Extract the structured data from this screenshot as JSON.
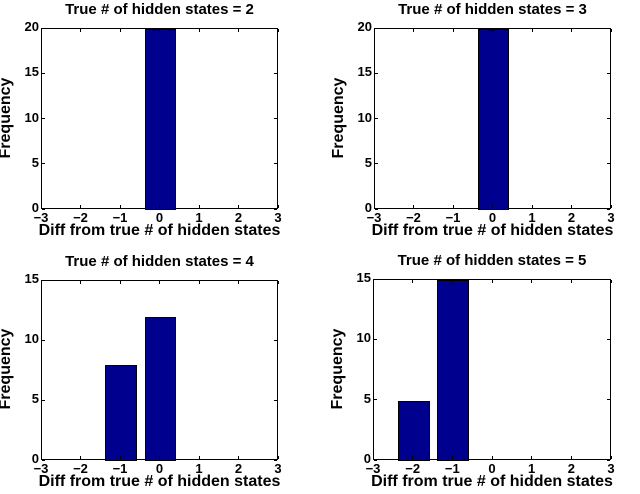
{
  "chart_data": [
    {
      "type": "bar",
      "title": "True # of hidden states = 2",
      "xlabel": "Diff from true # of hidden states",
      "ylabel": "Frequency",
      "x": [
        0
      ],
      "values": [
        20
      ],
      "xlim": [
        -3,
        3
      ],
      "ylim": [
        0,
        20
      ],
      "xticks": [
        "-3",
        "-2",
        "-1",
        "0",
        "1",
        "2",
        "3"
      ],
      "yticks": [
        "0",
        "5",
        "10",
        "15",
        "20"
      ],
      "bar_color": "#00008f",
      "grid": false
    },
    {
      "type": "bar",
      "title": "True # of hidden states = 3",
      "xlabel": "Diff from true # of hidden states",
      "ylabel": "Frequency",
      "x": [
        0
      ],
      "values": [
        20
      ],
      "xlim": [
        -3,
        3
      ],
      "ylim": [
        0,
        20
      ],
      "xticks": [
        "-3",
        "-2",
        "-1",
        "0",
        "1",
        "2",
        "3"
      ],
      "yticks": [
        "0",
        "5",
        "10",
        "15",
        "20"
      ],
      "bar_color": "#00008f",
      "grid": false
    },
    {
      "type": "bar",
      "title": "True # of hidden states = 4",
      "xlabel": "Diff from true # of hidden states",
      "ylabel": "Frequency",
      "x": [
        -1,
        0
      ],
      "values": [
        8,
        12
      ],
      "xlim": [
        -3,
        3
      ],
      "ylim": [
        0,
        15
      ],
      "xticks": [
        "-3",
        "-2",
        "-1",
        "0",
        "1",
        "2",
        "3"
      ],
      "yticks": [
        "0",
        "5",
        "10",
        "15"
      ],
      "bar_color": "#00008f",
      "grid": false
    },
    {
      "type": "bar",
      "title": "True # of hidden states = 5",
      "xlabel": "Diff from true # of hidden states",
      "ylabel": "Frequency",
      "x": [
        -2,
        -1
      ],
      "values": [
        5,
        15
      ],
      "xlim": [
        -3,
        3
      ],
      "ylim": [
        0,
        15
      ],
      "xticks": [
        "-3",
        "-2",
        "-1",
        "0",
        "1",
        "2",
        "3"
      ],
      "yticks": [
        "0",
        "5",
        "10",
        "15"
      ],
      "bar_color": "#00008f",
      "grid": false
    }
  ]
}
